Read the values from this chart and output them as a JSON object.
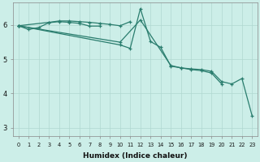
{
  "xlabel": "Humidex (Indice chaleur)",
  "bg_color": "#cceee8",
  "line_color": "#2a7d6e",
  "grid_color": "#b0d8d0",
  "xlim": [
    -0.5,
    23.5
  ],
  "ylim": [
    2.75,
    6.65
  ],
  "xticks": [
    0,
    1,
    2,
    3,
    4,
    5,
    6,
    7,
    8,
    9,
    10,
    11,
    12,
    13,
    14,
    15,
    16,
    17,
    18,
    19,
    20,
    21,
    22,
    23
  ],
  "yticks": [
    3,
    4,
    5,
    6
  ],
  "lines": [
    {
      "x": [
        0,
        1,
        2,
        3,
        4,
        5,
        6,
        7,
        8
      ],
      "y": [
        5.98,
        5.87,
        5.93,
        6.07,
        6.1,
        6.08,
        6.05,
        5.97,
        5.97
      ]
    },
    {
      "x": [
        0,
        3,
        4,
        5,
        6,
        7,
        8,
        9,
        10,
        11
      ],
      "y": [
        5.98,
        6.08,
        6.12,
        6.12,
        6.1,
        6.08,
        6.05,
        6.02,
        5.98,
        6.1
      ]
    },
    {
      "x": [
        0,
        10,
        11,
        12,
        13,
        14,
        15,
        16,
        17,
        18,
        19,
        20,
        21,
        22,
        23
      ],
      "y": [
        5.98,
        5.42,
        5.32,
        6.48,
        5.52,
        5.35,
        4.8,
        4.75,
        4.72,
        4.7,
        4.65,
        4.35,
        4.28,
        4.44,
        3.35
      ]
    },
    {
      "x": [
        0,
        10,
        12,
        15,
        16,
        17,
        18,
        19,
        20
      ],
      "y": [
        5.98,
        5.5,
        6.15,
        4.82,
        4.75,
        4.7,
        4.67,
        4.6,
        4.28
      ]
    }
  ]
}
